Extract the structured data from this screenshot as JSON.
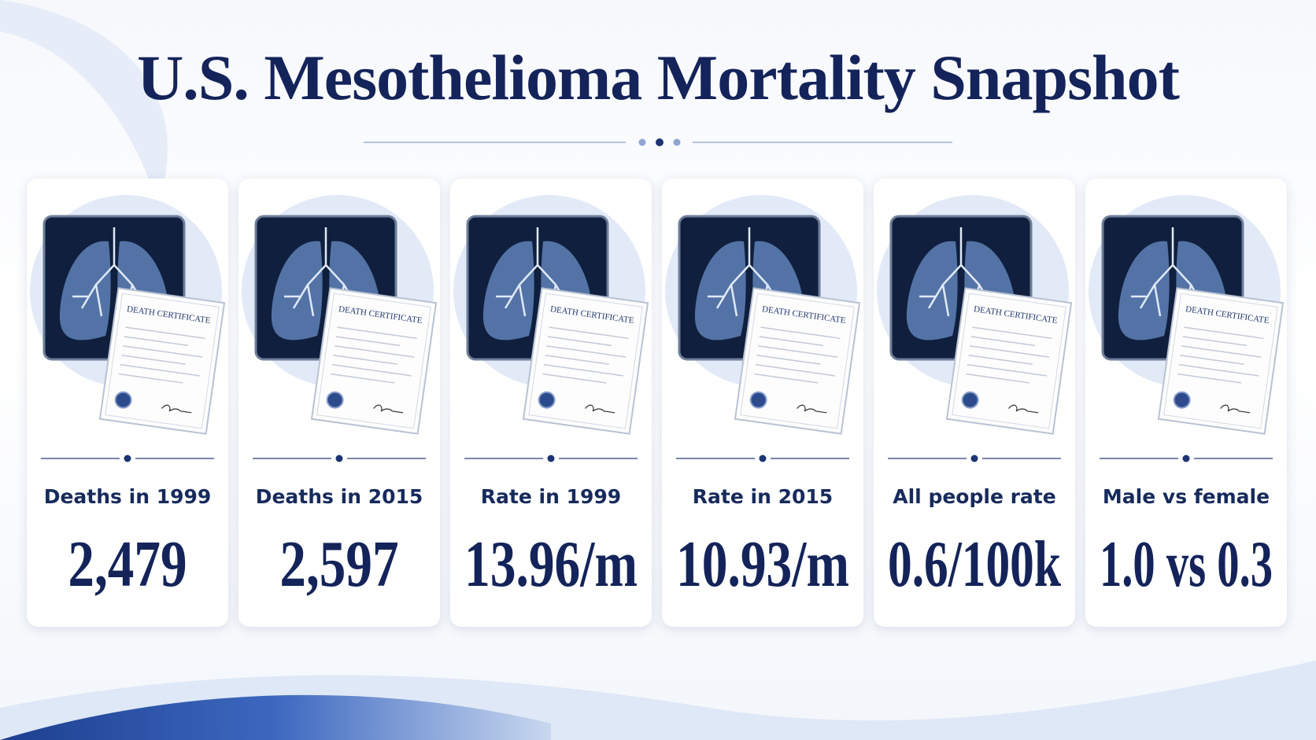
{
  "header": {
    "title": "U.S. Mesothelioma Mortality Snapshot"
  },
  "illustration_caption": "DEATH CERTIFICATE",
  "cards": [
    {
      "label": "Deaths in 1999",
      "value": "2,479"
    },
    {
      "label": "Deaths in 2015",
      "value": "2,597"
    },
    {
      "label": "Rate in 1999",
      "value": "13.96/m"
    },
    {
      "label": "Rate in 2015",
      "value": "10.93/m"
    },
    {
      "label": "All people rate",
      "value": "0.6/100k"
    },
    {
      "label": "Male vs female",
      "value": "1.0 vs 0.3"
    }
  ]
}
